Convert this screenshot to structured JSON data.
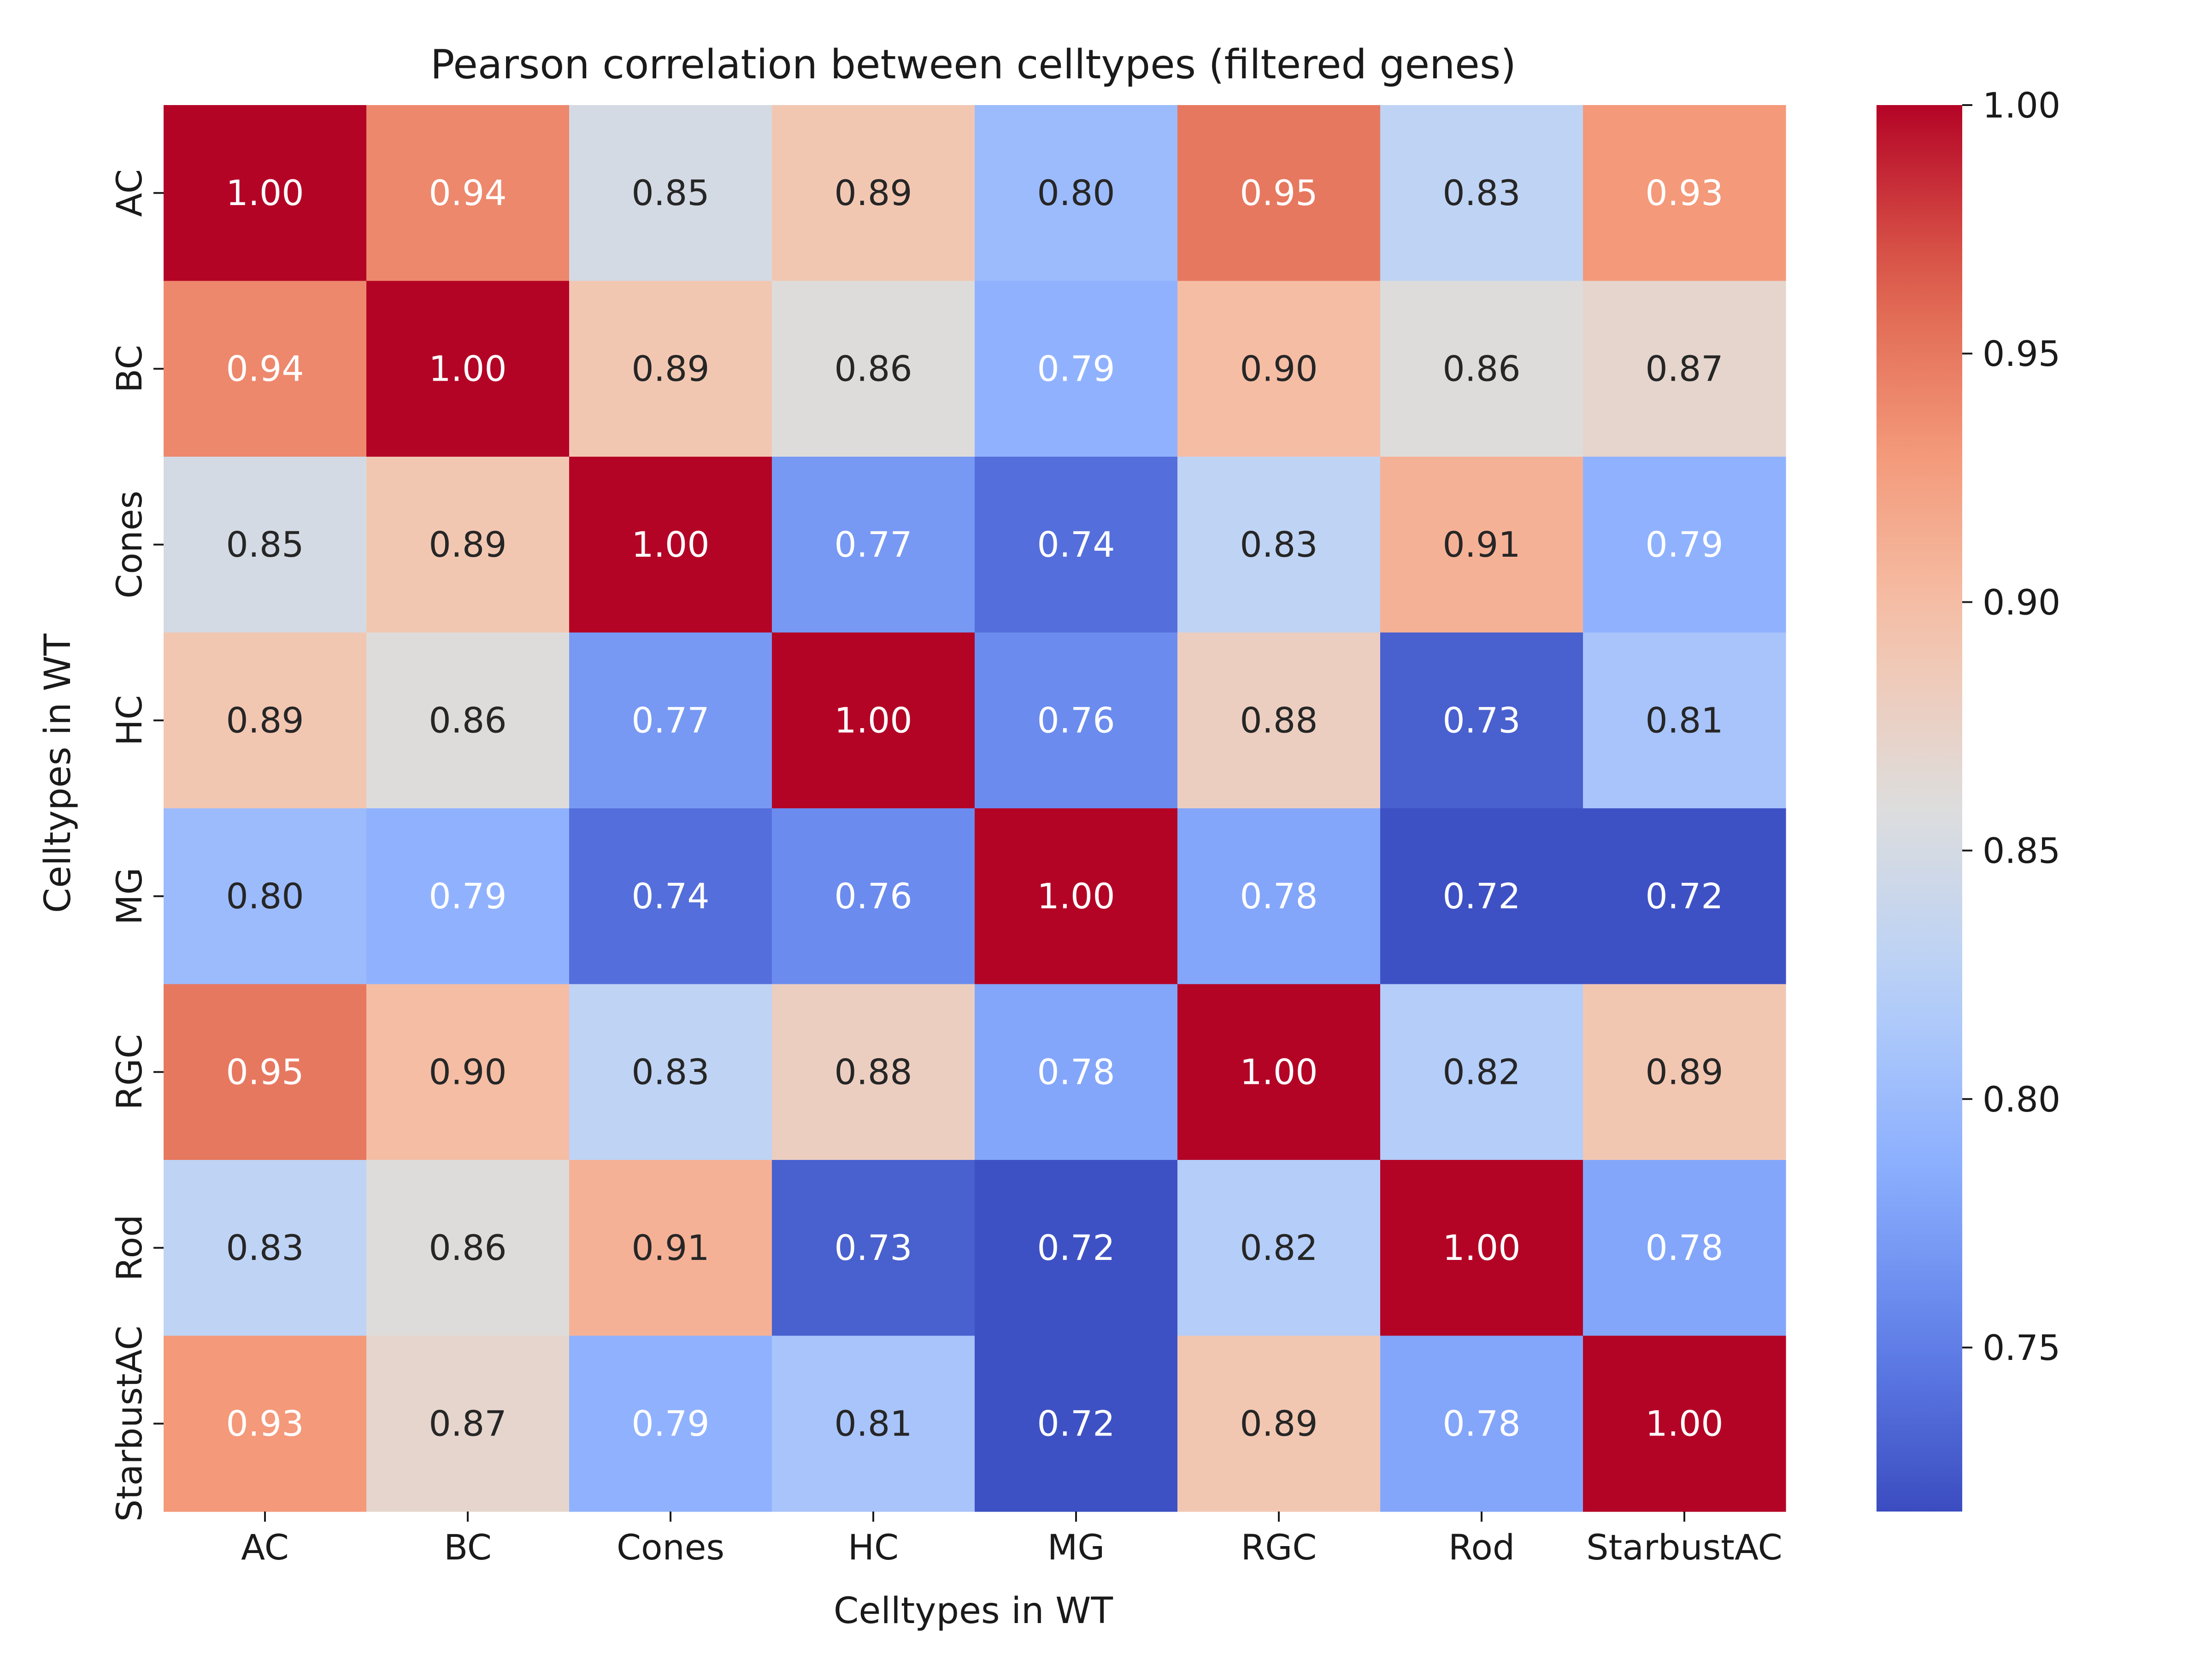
{
  "chart_data": {
    "type": "heatmap",
    "title": "Pearson correlation between celltypes (filtered genes)",
    "xlabel": "Celltypes in WT",
    "ylabel": "Celltypes in WT",
    "x_categories": [
      "AC",
      "BC",
      "Cones",
      "HC",
      "MG",
      "RGC",
      "Rod",
      "StarbustAC"
    ],
    "y_categories": [
      "AC",
      "BC",
      "Cones",
      "HC",
      "MG",
      "RGC",
      "Rod",
      "StarbustAC"
    ],
    "values": [
      [
        1.0,
        0.94,
        0.85,
        0.89,
        0.8,
        0.95,
        0.83,
        0.93
      ],
      [
        0.94,
        1.0,
        0.89,
        0.86,
        0.79,
        0.9,
        0.86,
        0.87
      ],
      [
        0.85,
        0.89,
        1.0,
        0.77,
        0.74,
        0.83,
        0.91,
        0.79
      ],
      [
        0.89,
        0.86,
        0.77,
        1.0,
        0.76,
        0.88,
        0.73,
        0.81
      ],
      [
        0.8,
        0.79,
        0.74,
        0.76,
        1.0,
        0.78,
        0.72,
        0.72
      ],
      [
        0.95,
        0.9,
        0.83,
        0.88,
        0.78,
        1.0,
        0.82,
        0.89
      ],
      [
        0.83,
        0.86,
        0.91,
        0.73,
        0.72,
        0.82,
        1.0,
        0.78
      ],
      [
        0.93,
        0.87,
        0.79,
        0.81,
        0.72,
        0.89,
        0.78,
        1.0
      ]
    ],
    "cell_labels": [
      [
        "1.00",
        "0.94",
        "0.85",
        "0.89",
        "0.80",
        "0.95",
        "0.83",
        "0.93"
      ],
      [
        "0.94",
        "1.00",
        "0.89",
        "0.86",
        "0.79",
        "0.90",
        "0.86",
        "0.87"
      ],
      [
        "0.85",
        "0.89",
        "1.00",
        "0.77",
        "0.74",
        "0.83",
        "0.91",
        "0.79"
      ],
      [
        "0.89",
        "0.86",
        "0.77",
        "1.00",
        "0.76",
        "0.88",
        "0.73",
        "0.81"
      ],
      [
        "0.80",
        "0.79",
        "0.74",
        "0.76",
        "1.00",
        "0.78",
        "0.72",
        "0.72"
      ],
      [
        "0.95",
        "0.90",
        "0.83",
        "0.88",
        "0.78",
        "1.00",
        "0.82",
        "0.89"
      ],
      [
        "0.83",
        "0.86",
        "0.91",
        "0.73",
        "0.72",
        "0.82",
        "1.00",
        "0.78"
      ],
      [
        "0.93",
        "0.87",
        "0.79",
        "0.81",
        "0.72",
        "0.89",
        "0.78",
        "1.00"
      ]
    ],
    "colormap": "coolwarm",
    "vmin": 0.717,
    "vmax": 1.0,
    "colorbar": {
      "ticks": [
        0.75,
        0.8,
        0.85,
        0.9,
        0.95,
        1.0
      ],
      "tick_labels": [
        "0.75",
        "0.80",
        "0.85",
        "0.90",
        "0.95",
        "1.00"
      ],
      "placement": "right"
    },
    "annotation_colors": {
      "dark": "#262626",
      "light": "#ffffff"
    }
  }
}
